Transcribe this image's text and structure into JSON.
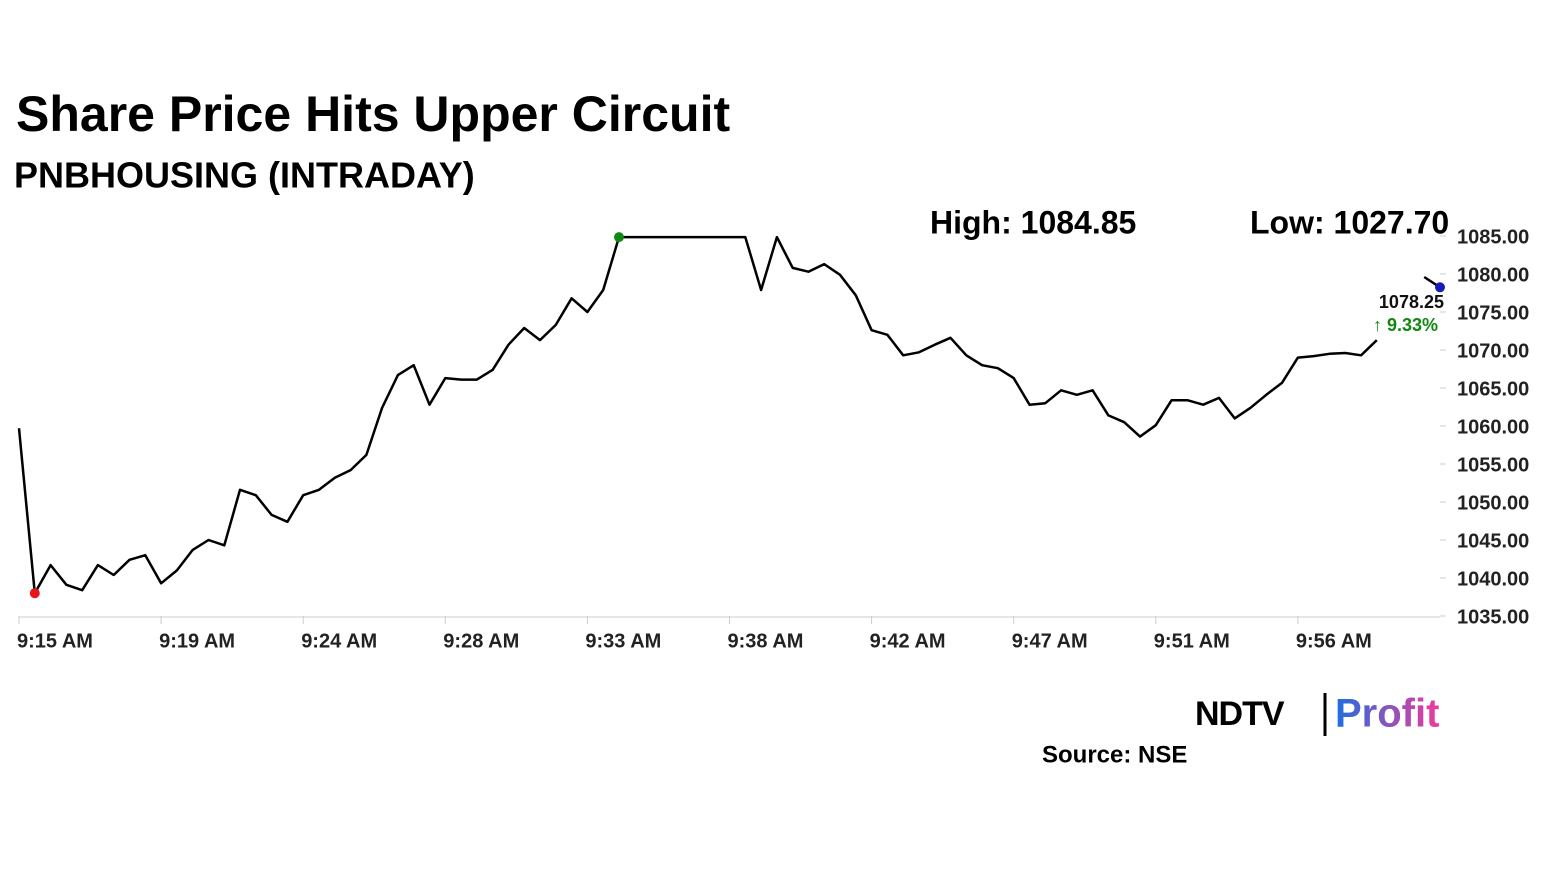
{
  "chart_data": {
    "type": "line",
    "title": "Share Price Hits Upper Circuit",
    "subtitle": "PNBHOUSING (INTRADAY)",
    "high_label": "High: 1084.85",
    "low_label": "Low: 1027.70",
    "change_label": "↑ 9.33%",
    "source": "Source: NSE",
    "brand": {
      "left": "NDTV",
      "right": "Profit"
    },
    "categories": [
      "9:15 AM",
      null,
      null,
      null,
      null,
      null,
      null,
      null,
      null,
      "9:19 AM",
      null,
      null,
      null,
      null,
      null,
      null,
      null,
      null,
      "9:24 AM",
      null,
      null,
      null,
      null,
      null,
      null,
      null,
      null,
      "9:28 AM",
      null,
      null,
      null,
      null,
      null,
      null,
      null,
      null,
      "9:33 AM",
      null,
      null,
      null,
      null,
      null,
      null,
      null,
      null,
      "9:38 AM",
      null,
      null,
      null,
      null,
      null,
      null,
      null,
      null,
      "9:42 AM",
      null,
      null,
      null,
      null,
      null,
      null,
      null,
      null,
      "9:47 AM",
      null,
      null,
      null,
      null,
      null,
      null,
      null,
      null,
      "9:51 AM",
      null,
      null,
      null,
      null,
      null,
      null,
      null,
      null,
      "9:56 AM",
      null,
      null,
      null,
      null,
      null,
      null,
      null,
      null,
      null
    ],
    "series": [
      {
        "name": "PNBHOUSING",
        "color": "#000000",
        "values": [
          1059.7,
          1038,
          1041.7,
          1039.1,
          1038.4,
          1041.7,
          1040.4,
          1042.4,
          1043,
          1039.3,
          1041,
          1043.7,
          1045,
          1044.3,
          1051.6,
          1050.9,
          1048.3,
          1047.4,
          1050.9,
          1051.6,
          1053.2,
          1054.2,
          1056.2,
          1062.4,
          1066.7,
          1068,
          1062.8,
          1066.3,
          1066.1,
          1066.1,
          1067.4,
          1070.7,
          1072.9,
          1071.3,
          1073.3,
          1076.8,
          1075,
          1077.9,
          1084.85,
          1084.85,
          1084.85,
          1084.85,
          1084.85,
          1084.85,
          1084.85,
          1084.85,
          1084.85,
          1077.9,
          1084.85,
          1080.8,
          1080.3,
          1081.3,
          1079.9,
          1077.2,
          1072.6,
          1072,
          1069.3,
          1069.7,
          1070.7,
          1071.6,
          1069.3,
          1068,
          1067.6,
          1066.3,
          1062.8,
          1063,
          1064.7,
          1064.1,
          1064.7,
          1061.4,
          1060.5,
          1058.6,
          1060.1,
          1063.4,
          1063.4,
          1062.8,
          1063.7,
          1061,
          1062.4,
          1064.1,
          1065.7,
          1069,
          1069.2,
          1069.5,
          1069.6,
          1069.3,
          1071.3,
          null,
          null,
          1079.6,
          1078.25
        ]
      }
    ],
    "low_color": "#e8141b",
    "high_color": "#118811",
    "last_color": "#1a1ab8",
    "change_color": "#118811",
    "ylim": [
      1035,
      1085
    ],
    "yticks": [
      {
        "value": 1035,
        "label": "1035.00"
      },
      {
        "value": 1040,
        "label": "1040.00"
      },
      {
        "value": 1045,
        "label": "1045.00"
      },
      {
        "value": 1050,
        "label": "1050.00"
      },
      {
        "value": 1055,
        "label": "1055.00"
      },
      {
        "value": 1060,
        "label": "1060.00"
      },
      {
        "value": 1065,
        "label": "1065.00"
      },
      {
        "value": 1070,
        "label": "1070.00"
      },
      {
        "value": 1075,
        "label": "1075.00"
      },
      {
        "value": 1080,
        "label": "1080.00"
      },
      {
        "value": 1085,
        "label": "1085.00"
      }
    ],
    "grid": false
  }
}
